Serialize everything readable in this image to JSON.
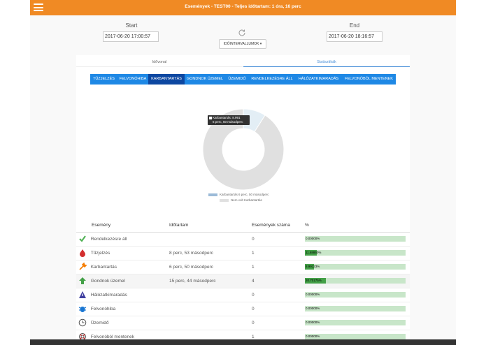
{
  "header": {
    "title": "Események - TEST00 - Teljes időtartam: 1 óra, 16 perc"
  },
  "range": {
    "start_label": "Start",
    "start_value": "2017-06-20 17:00:57",
    "end_label": "End",
    "end_value": "2017-06-20 18:16:57",
    "interval_button": "IDŐINTERVALLUMOK ▾"
  },
  "tabs": [
    "Idővonal",
    "Statisztikák"
  ],
  "chips": [
    {
      "label": "TŰZJELZÉS",
      "active": false
    },
    {
      "label": "FELVONÓHIBA",
      "active": false
    },
    {
      "label": "KARBANTARTÁS",
      "active": true
    },
    {
      "label": "GONDNOK ÜZEMEL",
      "active": false
    },
    {
      "label": "ÜZEMIDŐ",
      "active": false
    },
    {
      "label": "RENDELKEZÉSRE ÁLL",
      "active": false
    },
    {
      "label": "HÁLÓZATKIMARADÁS",
      "active": false
    },
    {
      "label": "FELVONÓBÓL MENTENEK",
      "active": false
    }
  ],
  "chart_data": {
    "type": "pie",
    "categories": [
      "Karbantartás",
      "Nem volt Karbantartás"
    ],
    "values": [
      8.991,
      91.009
    ],
    "colors": [
      "#e3eef5",
      "#e0e0e0"
    ],
    "legend": [
      "Karbantartás 6 perc, 50 másodperc",
      "Nem volt Karbantartás"
    ],
    "tooltip": [
      "Karbantartás: 8.991",
      "6 perc, 50 másodperc"
    ]
  },
  "table": {
    "headers": [
      "Esemény",
      "Időtartam",
      "Események száma",
      "%"
    ],
    "rows": [
      {
        "icon": "checkmark-icon",
        "name": "Rendelkezésre áll",
        "duration": "",
        "count": "0",
        "pct": "0.00000%",
        "fraction": 0
      },
      {
        "icon": "fire-drop-icon",
        "name": "Tűzjelzés",
        "duration": "8 perc, 53 másodperc",
        "count": "1",
        "pct": "11.68860%",
        "fraction": 0.1169
      },
      {
        "icon": "wrench-icon",
        "name": "Karbantartás",
        "duration": "6 perc, 50 másodperc",
        "count": "1",
        "pct": "8.99123%",
        "fraction": 0.0899
      },
      {
        "icon": "arrow-up-icon",
        "name": "Gondnok üzemel",
        "duration": "15 perc, 44 másodperc",
        "count": "4",
        "pct": "20.70175%",
        "fraction": 0.207
      },
      {
        "icon": "warning-icon",
        "name": "Hálózatkimaradás",
        "duration": "",
        "count": "0",
        "pct": "0.00000%",
        "fraction": 0
      },
      {
        "icon": "bug-icon",
        "name": "Felvonóhiba",
        "duration": "",
        "count": "0",
        "pct": "0.00000%",
        "fraction": 0
      },
      {
        "icon": "clock-icon",
        "name": "Üzemidő",
        "duration": "",
        "count": "0",
        "pct": "0.00000%",
        "fraction": 0
      },
      {
        "icon": "lifebuoy-icon",
        "name": "Felvonóból mentenek",
        "duration": "",
        "count": "1",
        "pct": "0.00000%",
        "fraction": 0
      }
    ]
  }
}
